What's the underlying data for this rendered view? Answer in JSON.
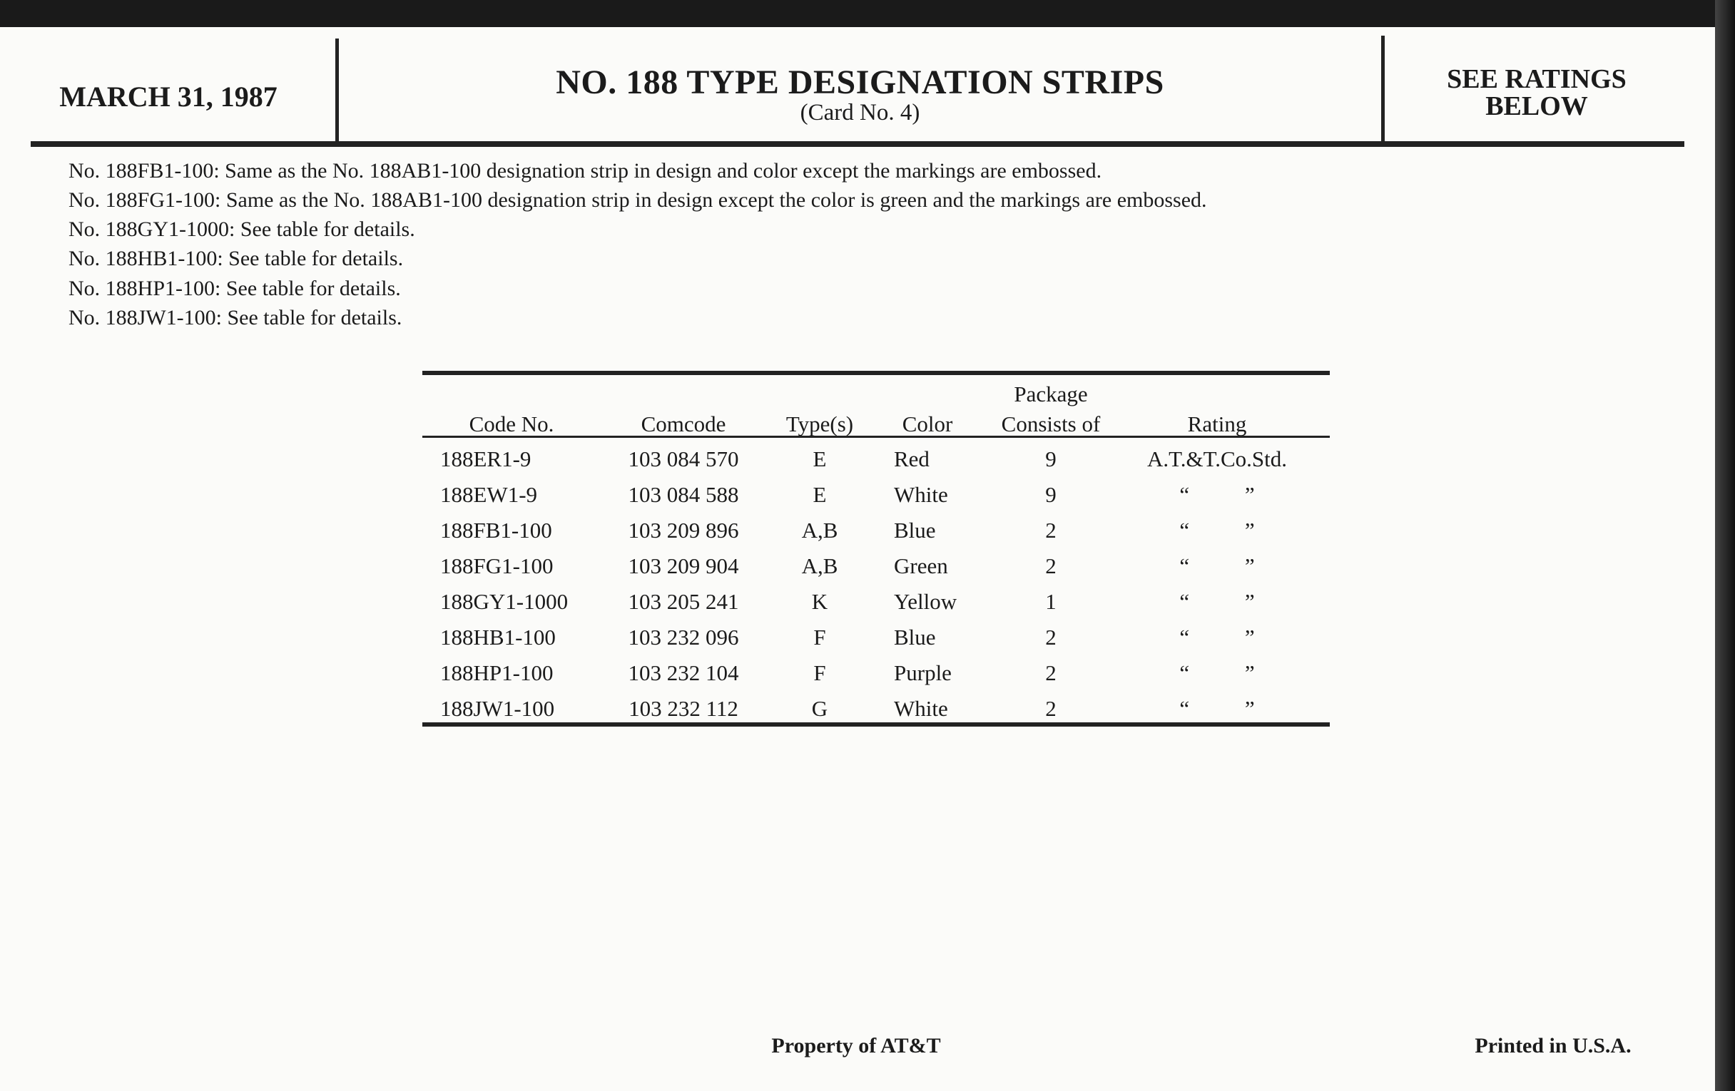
{
  "header": {
    "date": "MARCH 31, 1987",
    "title": "NO. 188 TYPE DESIGNATION STRIPS",
    "subtitle": "(Card No. 4)",
    "ratings_line1": "SEE RATINGS",
    "ratings_line2": "BELOW"
  },
  "notes": [
    "No. 188FB1-100: Same as the No. 188AB1-100 designation strip in design and color except the markings are embossed.",
    "No. 188FG1-100: Same as the No. 188AB1-100 designation strip in design except the color is green and the markings are embossed.",
    "No. 188GY1-1000: See table for details.",
    "No. 188HB1-100: See table for details.",
    "No. 188HP1-100: See table for details.",
    "No. 188JW1-100: See table for details."
  ],
  "table": {
    "headers": {
      "code": "Code No.",
      "comcode": "Comcode",
      "types": "Type(s)",
      "color": "Color",
      "package_line1": "Package",
      "package_line2": "Consists of",
      "rating": "Rating"
    },
    "rows": [
      {
        "code": "188ER1-9",
        "comcode": "103 084 570",
        "types": "E",
        "color": "Red",
        "package": "9",
        "rating": "A.T.&T.Co.Std."
      },
      {
        "code": "188EW1-9",
        "comcode": "103 084 588",
        "types": "E",
        "color": "White",
        "package": "9",
        "rating": "“ ”"
      },
      {
        "code": "188FB1-100",
        "comcode": "103 209 896",
        "types": "A,B",
        "color": "Blue",
        "package": "2",
        "rating": "“ ”"
      },
      {
        "code": "188FG1-100",
        "comcode": "103 209 904",
        "types": "A,B",
        "color": "Green",
        "package": "2",
        "rating": "“ ”"
      },
      {
        "code": "188GY1-1000",
        "comcode": "103 205 241",
        "types": "K",
        "color": "Yellow",
        "package": "1",
        "rating": "“ ”"
      },
      {
        "code": "188HB1-100",
        "comcode": "103 232 096",
        "types": "F",
        "color": "Blue",
        "package": "2",
        "rating": "“ ”"
      },
      {
        "code": "188HP1-100",
        "comcode": "103 232 104",
        "types": "F",
        "color": "Purple",
        "package": "2",
        "rating": "“ ”"
      },
      {
        "code": "188JW1-100",
        "comcode": "103 232 112",
        "types": "G",
        "color": "White",
        "package": "2",
        "rating": "“ ”"
      }
    ]
  },
  "footer": {
    "property": "Property of AT&T",
    "printed": "Printed in U.S.A."
  }
}
